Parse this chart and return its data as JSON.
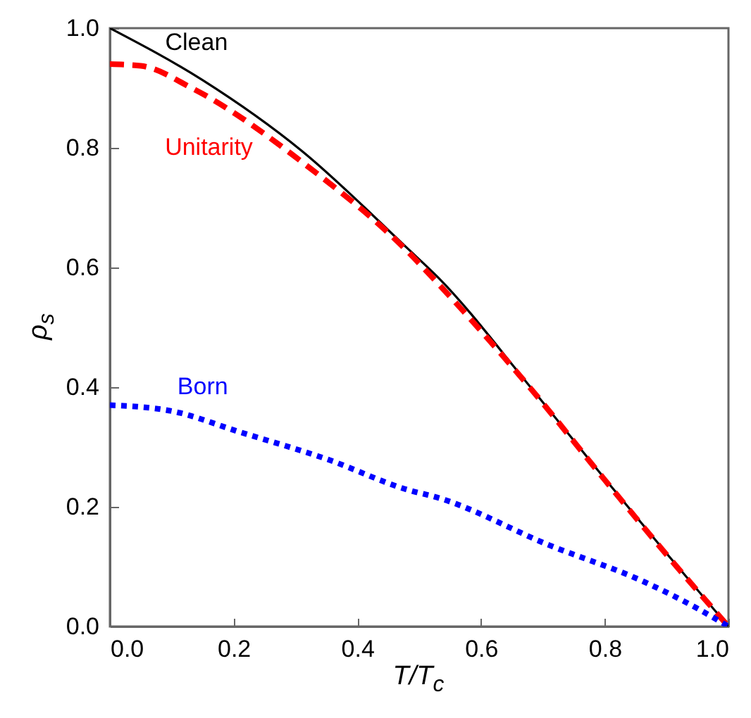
{
  "chart_data": {
    "type": "line",
    "xlabel": "T/T$_{c}$",
    "ylabel": "ρ$_{s}$",
    "xlim": [
      0,
      1
    ],
    "ylim": [
      0,
      1
    ],
    "xticks": [
      {
        "value": 0,
        "label": "0.0"
      },
      0.2,
      0.4,
      0.6,
      0.8,
      {
        "value": 1,
        "label": "1.0"
      }
    ],
    "yticks": [
      {
        "value": 0,
        "label": "0.0"
      },
      0.2,
      0.4,
      0.6,
      0.8,
      {
        "value": 1,
        "label": "1.0"
      }
    ],
    "grid": false,
    "series": [
      {
        "name": "Clean",
        "color": "#000000",
        "line_style": "solid",
        "x": [
          0,
          0.15,
          0.31,
          0.48,
          0.53,
          0.68,
          0.8,
          0.9,
          1
        ],
        "values": [
          1,
          0.913,
          0.795,
          0.633,
          0.584,
          0.4,
          0.247,
          0.122,
          0
        ]
      },
      {
        "name": "Unitarity",
        "color": "#ff0000",
        "line_style": "dashed",
        "x": [
          0,
          0.05,
          0.134,
          0.316,
          0.483,
          0.528,
          0.68,
          0.8,
          0.9,
          1
        ],
        "values": [
          0.94,
          0.937,
          0.899,
          0.772,
          0.625,
          0.576,
          0.398,
          0.245,
          0.12,
          0
        ]
      },
      {
        "name": "Born",
        "color": "#0000ff",
        "line_style": "dotted",
        "x": [
          0,
          0.1,
          0.21,
          0.35,
          0.483,
          0.528,
          0.71,
          0.863,
          0.95,
          1
        ],
        "values": [
          0.37,
          0.36,
          0.325,
          0.28,
          0.228,
          0.216,
          0.136,
          0.075,
          0.03,
          0
        ]
      }
    ]
  }
}
